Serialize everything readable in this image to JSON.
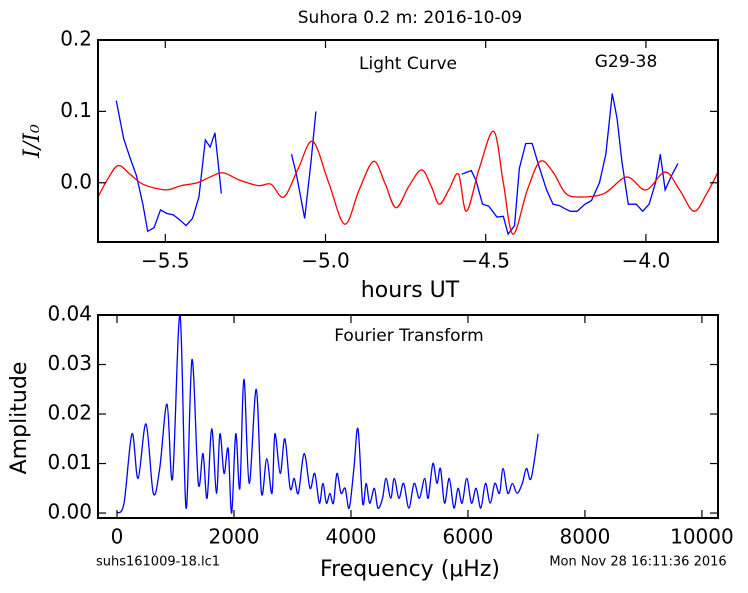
{
  "chart_data": [
    {
      "type": "line",
      "title": "Suhora 0.2 m:  2016-10-09",
      "xlabel": "hours UT",
      "ylabel": "I/I₀",
      "annotations": [
        "Light Curve",
        "G29-38"
      ],
      "xlim": [
        -5.71,
        -3.775
      ],
      "ylim": [
        -0.083,
        0.2
      ],
      "xticks": [
        {
          "value": -5.5,
          "label": "−5.5"
        },
        {
          "value": -5.0,
          "label": "−5.0"
        },
        {
          "value": -4.5,
          "label": "−4.5"
        },
        {
          "value": -4.0,
          "label": "−4.0"
        }
      ],
      "yticks": [
        {
          "value": 0,
          "label": "0.0"
        },
        0.1,
        0.2
      ],
      "series": [
        {
          "color": "#0000ff",
          "x": [
            -5.653,
            -5.63,
            -5.61,
            -5.59,
            -5.57,
            -5.555,
            -5.535,
            -5.515,
            -5.495,
            -5.475,
            -5.455,
            -5.435,
            -5.415,
            -5.395,
            -5.375,
            -5.36,
            -5.345,
            -5.325,
            null,
            -5.106,
            -5.09,
            -5.065,
            -5.045,
            -5.03,
            null,
            -4.575,
            -4.545,
            -4.53,
            -4.51,
            -4.49,
            -4.465,
            -4.445,
            -4.43,
            -4.41,
            -4.395,
            -4.375,
            -4.355,
            -4.335,
            -4.31,
            -4.29,
            -4.27,
            -4.25,
            -4.235,
            -4.215,
            -4.19,
            -4.17,
            -4.145,
            -4.125,
            -4.105,
            -4.09,
            -4.075,
            -4.055,
            -4.03,
            -4.01,
            -3.99,
            -3.97,
            -3.955,
            -3.94,
            -3.92,
            -3.9
          ],
          "values": [
            0.115,
            0.062,
            0.035,
            0.01,
            -0.03,
            -0.068,
            -0.063,
            -0.038,
            -0.043,
            -0.045,
            -0.052,
            -0.06,
            -0.05,
            -0.02,
            0.06,
            0.05,
            0.07,
            -0.015,
            null,
            0.04,
            0.01,
            -0.05,
            0.03,
            0.1,
            null,
            0.012,
            0.017,
            0.003,
            -0.03,
            -0.033,
            -0.048,
            -0.047,
            -0.072,
            -0.06,
            0.02,
            0.055,
            0.055,
            0.025,
            -0.01,
            -0.03,
            -0.032,
            -0.037,
            -0.04,
            -0.04,
            -0.03,
            -0.025,
            0.0,
            0.04,
            0.125,
            0.09,
            0.03,
            -0.03,
            -0.03,
            -0.04,
            -0.03,
            0.0,
            0.04,
            -0.01,
            0.01,
            0.027
          ]
        },
        {
          "color": "#ff0000",
          "x": [
            -5.71,
            -5.68,
            -5.647,
            -5.61,
            -5.57,
            -5.5,
            -5.45,
            -5.4,
            -5.36,
            -5.32,
            -5.27,
            -5.21,
            -5.17,
            -5.13,
            -5.085,
            -5.04,
            -4.99,
            -4.94,
            -4.895,
            -4.85,
            -4.815,
            -4.78,
            -4.74,
            -4.7,
            -4.67,
            -4.645,
            -4.615,
            -4.585,
            -4.56,
            -4.52,
            -4.475,
            -4.445,
            -4.415,
            -4.37,
            -4.33,
            -4.29,
            -4.25,
            -4.2,
            -4.13,
            -4.06,
            -4.0,
            -3.94,
            -3.895,
            -3.85,
            -3.81,
            -3.775
          ],
          "values": [
            -0.02,
            0.005,
            0.024,
            0.012,
            -0.002,
            -0.01,
            -0.004,
            0.0,
            0.008,
            0.014,
            0.004,
            -0.004,
            -0.002,
            -0.02,
            0.02,
            0.058,
            0.0,
            -0.058,
            -0.01,
            0.03,
            0.0,
            -0.035,
            -0.005,
            0.018,
            -0.005,
            -0.03,
            -0.01,
            0.012,
            -0.04,
            0.02,
            0.072,
            0.0,
            -0.072,
            -0.01,
            0.03,
            0.015,
            -0.015,
            -0.02,
            -0.015,
            0.008,
            -0.01,
            0.015,
            -0.01,
            -0.04,
            -0.015,
            0.015
          ]
        }
      ]
    },
    {
      "type": "line",
      "xlabel": "Frequency (μHz)",
      "ylabel": "Amplitude",
      "annotations": [
        "Fourier Transform"
      ],
      "xlim": [
        -325,
        10275
      ],
      "ylim": [
        -0.001,
        0.04
      ],
      "xticks": [
        0,
        2000,
        4000,
        6000,
        8000,
        10000
      ],
      "yticks": [
        {
          "value": 0,
          "label": "0.00"
        },
        0.01,
        0.02,
        0.03,
        0.04
      ],
      "series": [
        {
          "color": "#0000ff",
          "x": [
            0,
            120,
            256,
            360,
            496,
            620,
            730,
            855,
            950,
            1077,
            1180,
            1282,
            1390,
            1470,
            1540,
            1620,
            1700,
            1760,
            1830,
            1900,
            1960,
            2030,
            2100,
            2170,
            2260,
            2380,
            2470,
            2560,
            2650,
            2700,
            2790,
            2870,
            2960,
            3030,
            3100,
            3200,
            3300,
            3380,
            3460,
            3520,
            3580,
            3640,
            3700,
            3760,
            3830,
            3900,
            3970,
            4050,
            4120,
            4200,
            4260,
            4320,
            4400,
            4460,
            4540,
            4600,
            4680,
            4740,
            4820,
            4900,
            4990,
            5080,
            5170,
            5260,
            5320,
            5400,
            5470,
            5530,
            5600,
            5680,
            5760,
            5830,
            5900,
            5980,
            6060,
            6140,
            6220,
            6300,
            6380,
            6460,
            6540,
            6600,
            6680,
            6760,
            6840,
            6930,
            7000,
            7080,
            7200
          ],
          "values": [
            0.0,
            0.002,
            0.016,
            0.007,
            0.018,
            0.004,
            0.009,
            0.022,
            0.007,
            0.04,
            0.001,
            0.031,
            0.006,
            0.012,
            0.003,
            0.017,
            0.004,
            0.016,
            0.008,
            0.013,
            0.0,
            0.016,
            0.005,
            0.027,
            0.006,
            0.025,
            0.004,
            0.011,
            0.004,
            0.016,
            0.008,
            0.015,
            0.005,
            0.007,
            0.004,
            0.012,
            0.005,
            0.008,
            0.002,
            0.006,
            0.002,
            0.004,
            0.002,
            0.008,
            0.004,
            0.005,
            0.001,
            0.009,
            0.017,
            0.002,
            0.006,
            0.002,
            0.005,
            0.001,
            0.003,
            0.007,
            0.003,
            0.007,
            0.003,
            0.006,
            0.001,
            0.006,
            0.003,
            0.007,
            0.003,
            0.01,
            0.006,
            0.009,
            0.002,
            0.007,
            0.001,
            0.005,
            0.002,
            0.007,
            0.002,
            0.005,
            0.001,
            0.006,
            0.002,
            0.006,
            0.004,
            0.009,
            0.004,
            0.006,
            0.004,
            0.006,
            0.009,
            0.007,
            0.016
          ]
        }
      ]
    }
  ],
  "footer": {
    "left": "suhs161009-18.lc1",
    "right": "Mon Nov 28 16:11:36 2016"
  }
}
